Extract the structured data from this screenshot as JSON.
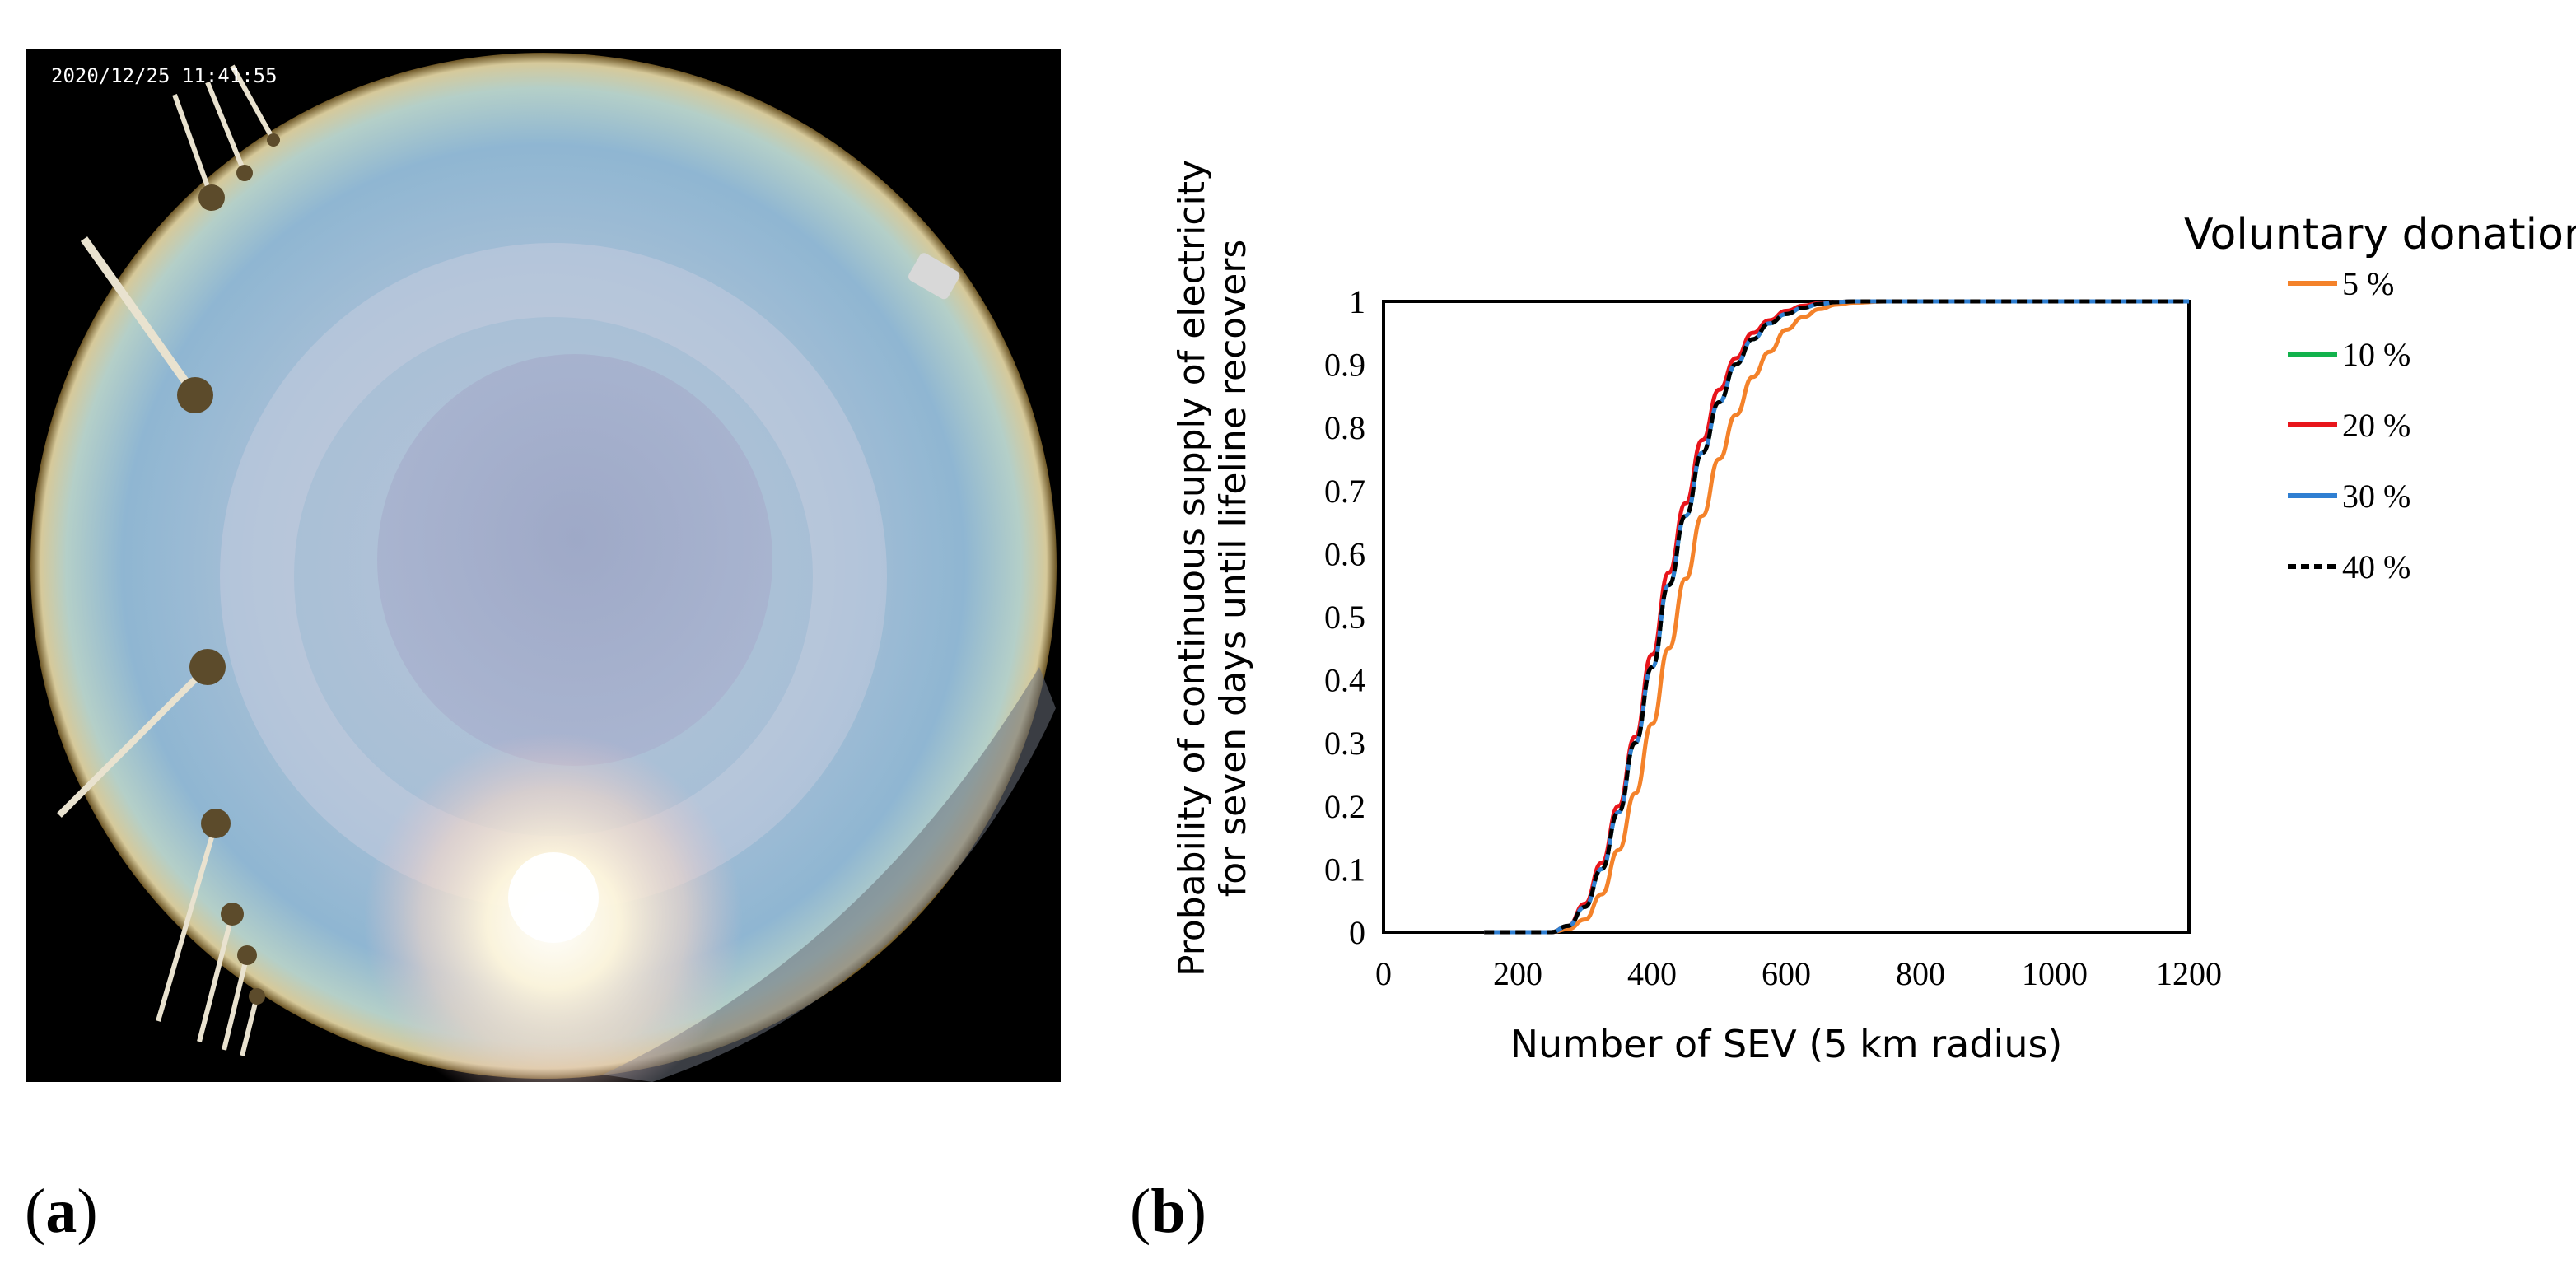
{
  "panel_a": {
    "label_open": "(",
    "label_letter": "a",
    "label_close": ")",
    "timestamp": "2020/12/25 11:41:55",
    "image_description": "fisheye all-sky camera photo with sun, halo and palm trees"
  },
  "panel_b": {
    "label_open": "(",
    "label_letter": "b",
    "label_close": ")"
  },
  "colors": {
    "s5": "#F4822A",
    "s10": "#12B24C",
    "s20": "#E8151B",
    "s30": "#2F7FD2",
    "s40": "#000000"
  },
  "chart_data": {
    "type": "line",
    "title": "",
    "xlabel": "Number of SEV (5 km radius)",
    "ylabel_line1": "Probability of continuous supply of electricity",
    "ylabel_line2": "for seven days until lifeline recovers",
    "xlim": [
      0,
      1200
    ],
    "ylim": [
      0,
      1
    ],
    "xticks": [
      "0",
      "200",
      "400",
      "600",
      "800",
      "1000",
      "1200"
    ],
    "yticks": [
      "0",
      "0.1",
      "0.2",
      "0.3",
      "0.4",
      "0.5",
      "0.6",
      "0.7",
      "0.8",
      "0.9",
      "1"
    ],
    "legend_title": "Voluntary donation",
    "legend_position": "right",
    "x": [
      150,
      200,
      250,
      275,
      300,
      325,
      350,
      375,
      400,
      425,
      450,
      475,
      500,
      525,
      550,
      575,
      600,
      625,
      650,
      675,
      700,
      750,
      800,
      1000,
      1200
    ],
    "series": [
      {
        "name": "5 %",
        "style": "solid",
        "color_key": "s5",
        "values": [
          0,
          0,
          0,
          0.005,
          0.02,
          0.06,
          0.13,
          0.22,
          0.33,
          0.45,
          0.56,
          0.66,
          0.75,
          0.82,
          0.88,
          0.92,
          0.955,
          0.975,
          0.988,
          0.995,
          0.998,
          1,
          1,
          1,
          1
        ]
      },
      {
        "name": "10 %",
        "style": "solid",
        "color_key": "s10",
        "values": [
          0,
          0,
          0,
          0.01,
          0.04,
          0.1,
          0.19,
          0.3,
          0.42,
          0.55,
          0.66,
          0.76,
          0.84,
          0.9,
          0.94,
          0.965,
          0.98,
          0.99,
          0.996,
          0.999,
          1,
          1,
          1,
          1,
          1
        ]
      },
      {
        "name": "20 %",
        "style": "solid",
        "color_key": "s20",
        "values": [
          0,
          0,
          0,
          0.01,
          0.045,
          0.11,
          0.2,
          0.31,
          0.44,
          0.57,
          0.68,
          0.78,
          0.86,
          0.91,
          0.95,
          0.97,
          0.985,
          0.993,
          0.997,
          0.999,
          1,
          1,
          1,
          1,
          1
        ]
      },
      {
        "name": "30 %",
        "style": "solid",
        "color_key": "s30",
        "values": [
          0,
          0,
          0,
          0.01,
          0.04,
          0.1,
          0.19,
          0.3,
          0.42,
          0.55,
          0.66,
          0.76,
          0.84,
          0.9,
          0.94,
          0.965,
          0.98,
          0.99,
          0.996,
          0.999,
          1,
          1,
          1,
          1,
          1
        ]
      },
      {
        "name": "40 %",
        "style": "dashed",
        "color_key": "s40",
        "values": [
          0,
          0,
          0,
          0.01,
          0.04,
          0.1,
          0.19,
          0.3,
          0.42,
          0.55,
          0.66,
          0.76,
          0.84,
          0.9,
          0.94,
          0.965,
          0.98,
          0.99,
          0.996,
          0.999,
          1,
          1,
          1,
          1,
          1
        ]
      }
    ]
  }
}
